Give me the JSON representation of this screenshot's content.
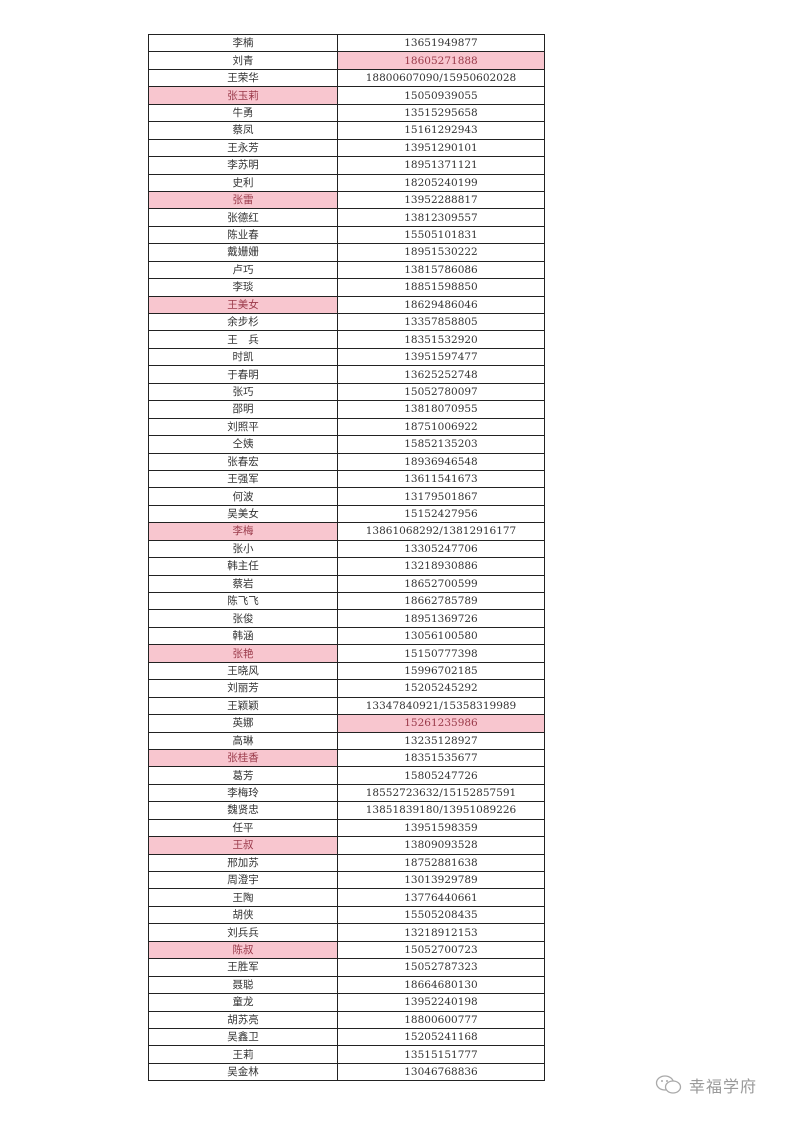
{
  "table": {
    "rows": [
      {
        "name": "李楠",
        "phone": "13651949877"
      },
      {
        "name": "刘青",
        "phone": "18605271888",
        "phone_highlight": true
      },
      {
        "name": "王荣华",
        "phone": "18800607090/15950602028"
      },
      {
        "name": "张玉莉",
        "phone": "15050939055",
        "name_highlight": true
      },
      {
        "name": "牛勇",
        "phone": "13515295658"
      },
      {
        "name": "蔡凤",
        "phone": "15161292943"
      },
      {
        "name": "王永芳",
        "phone": "13951290101"
      },
      {
        "name": "李苏明",
        "phone": "18951371121"
      },
      {
        "name": "史利",
        "phone": "18205240199"
      },
      {
        "name": "张雷",
        "phone": "13952288817",
        "name_highlight": true
      },
      {
        "name": "张德红",
        "phone": "13812309557"
      },
      {
        "name": "陈业春",
        "phone": "15505101831"
      },
      {
        "name": "戴姗姗",
        "phone": "18951530222"
      },
      {
        "name": "卢巧",
        "phone": "13815786086"
      },
      {
        "name": "李琰",
        "phone": "18851598850"
      },
      {
        "name": "王美女",
        "phone": "18629486046",
        "name_highlight": true
      },
      {
        "name": "余步杉",
        "phone": "13357858805"
      },
      {
        "name": "王　兵",
        "phone": "18351532920"
      },
      {
        "name": "时凯",
        "phone": "13951597477"
      },
      {
        "name": "于春明",
        "phone": "13625252748"
      },
      {
        "name": "张巧",
        "phone": "15052780097"
      },
      {
        "name": "邵明",
        "phone": "13818070955"
      },
      {
        "name": "刘照平",
        "phone": "18751006922"
      },
      {
        "name": "仝姨",
        "phone": "15852135203"
      },
      {
        "name": "张春宏",
        "phone": "18936946548"
      },
      {
        "name": "王强军",
        "phone": "13611541673"
      },
      {
        "name": "何波",
        "phone": "13179501867"
      },
      {
        "name": "吴美女",
        "phone": "15152427956"
      },
      {
        "name": "李梅",
        "phone": "13861068292/13812916177",
        "name_highlight": true
      },
      {
        "name": "张小",
        "phone": "13305247706"
      },
      {
        "name": "韩主任",
        "phone": "13218930886"
      },
      {
        "name": "蔡岩",
        "phone": "18652700599"
      },
      {
        "name": "陈飞飞",
        "phone": "18662785789"
      },
      {
        "name": "张俊",
        "phone": "18951369726"
      },
      {
        "name": "韩涵",
        "phone": "13056100580"
      },
      {
        "name": "张艳",
        "phone": "15150777398",
        "name_highlight": true
      },
      {
        "name": "王晓风",
        "phone": "15996702185"
      },
      {
        "name": "刘丽芳",
        "phone": "15205245292"
      },
      {
        "name": "王颖颖",
        "phone": "13347840921/15358319989"
      },
      {
        "name": "英娜",
        "phone": "15261235986",
        "phone_highlight": true
      },
      {
        "name": "高琳",
        "phone": "13235128927"
      },
      {
        "name": "张桂香",
        "phone": "18351535677",
        "name_highlight": true
      },
      {
        "name": "葛芳",
        "phone": "15805247726"
      },
      {
        "name": "李梅玲",
        "phone": "18552723632/15152857591"
      },
      {
        "name": "魏贤忠",
        "phone": "13851839180/13951089226"
      },
      {
        "name": "任平",
        "phone": "13951598359"
      },
      {
        "name": "王叔",
        "phone": "13809093528",
        "name_highlight": true
      },
      {
        "name": "邢加苏",
        "phone": "18752881638"
      },
      {
        "name": "周澄宇",
        "phone": "13013929789"
      },
      {
        "name": "王陶",
        "phone": "13776440661"
      },
      {
        "name": "胡侠",
        "phone": "15505208435"
      },
      {
        "name": "刘兵兵",
        "phone": "13218912153"
      },
      {
        "name": "陈叔",
        "phone": "15052700723",
        "name_highlight": true
      },
      {
        "name": "王胜军",
        "phone": "15052787323"
      },
      {
        "name": "聂聪",
        "phone": "18664680130"
      },
      {
        "name": "童龙",
        "phone": "13952240198"
      },
      {
        "name": "胡苏亮",
        "phone": "18800600777"
      },
      {
        "name": "吴鑫卫",
        "phone": "15205241168"
      },
      {
        "name": "王莉",
        "phone": "13515151777"
      },
      {
        "name": "吴金林",
        "phone": "13046768836"
      }
    ]
  },
  "watermark": {
    "text": "幸福学府",
    "icon": "wechat-icon"
  },
  "colors": {
    "highlight": "#f8c6cf",
    "highlight_text": "#9a3a4a"
  }
}
